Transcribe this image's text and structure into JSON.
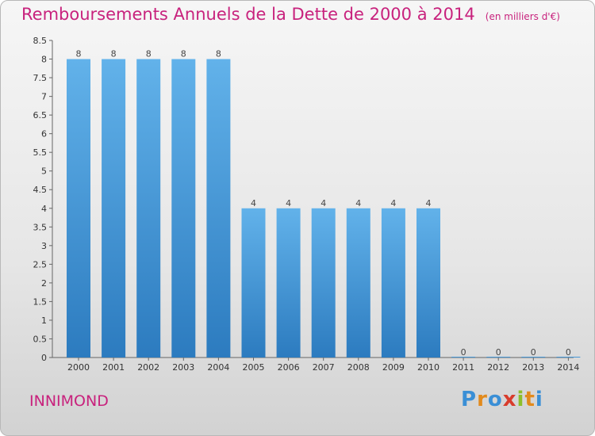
{
  "header": {
    "title": "Remboursements Annuels de la Dette de 2000 à 2014",
    "unit": "(en milliers d'€)"
  },
  "footer": {
    "commune": "INNIMOND",
    "brand": [
      "P",
      "r",
      "o",
      "x",
      "i",
      "t",
      "i"
    ],
    "brand_colors": [
      "#3a8fd6",
      "#e28a1c",
      "#3a8fd6",
      "#d83c2c",
      "#8cbf2a",
      "#e28a1c",
      "#3a8fd6"
    ]
  },
  "chart_data": {
    "type": "bar",
    "title": "Remboursements Annuels de la Dette de 2000 à 2014",
    "categories": [
      "2000",
      "2001",
      "2002",
      "2003",
      "2004",
      "2005",
      "2006",
      "2007",
      "2008",
      "2009",
      "2010",
      "2011",
      "2012",
      "2013",
      "2014"
    ],
    "values": [
      8,
      8,
      8,
      8,
      8,
      4,
      4,
      4,
      4,
      4,
      4,
      0,
      0,
      0,
      0
    ],
    "value_labels": [
      "8",
      "8",
      "8",
      "8",
      "8",
      "4",
      "4",
      "4",
      "4",
      "4",
      "4",
      "0",
      "0",
      "0",
      "0"
    ],
    "ylim": [
      0,
      8.5
    ],
    "yticks": [
      "0",
      "0.5",
      "1",
      "1.5",
      "2",
      "2.5",
      "3",
      "3.5",
      "4",
      "4.5",
      "5",
      "5.5",
      "6",
      "6.5",
      "7",
      "7.5",
      "8",
      "8.5"
    ],
    "grid": false,
    "bar_color_top": "#62b2ea",
    "bar_color_bottom": "#2c7bbf"
  }
}
